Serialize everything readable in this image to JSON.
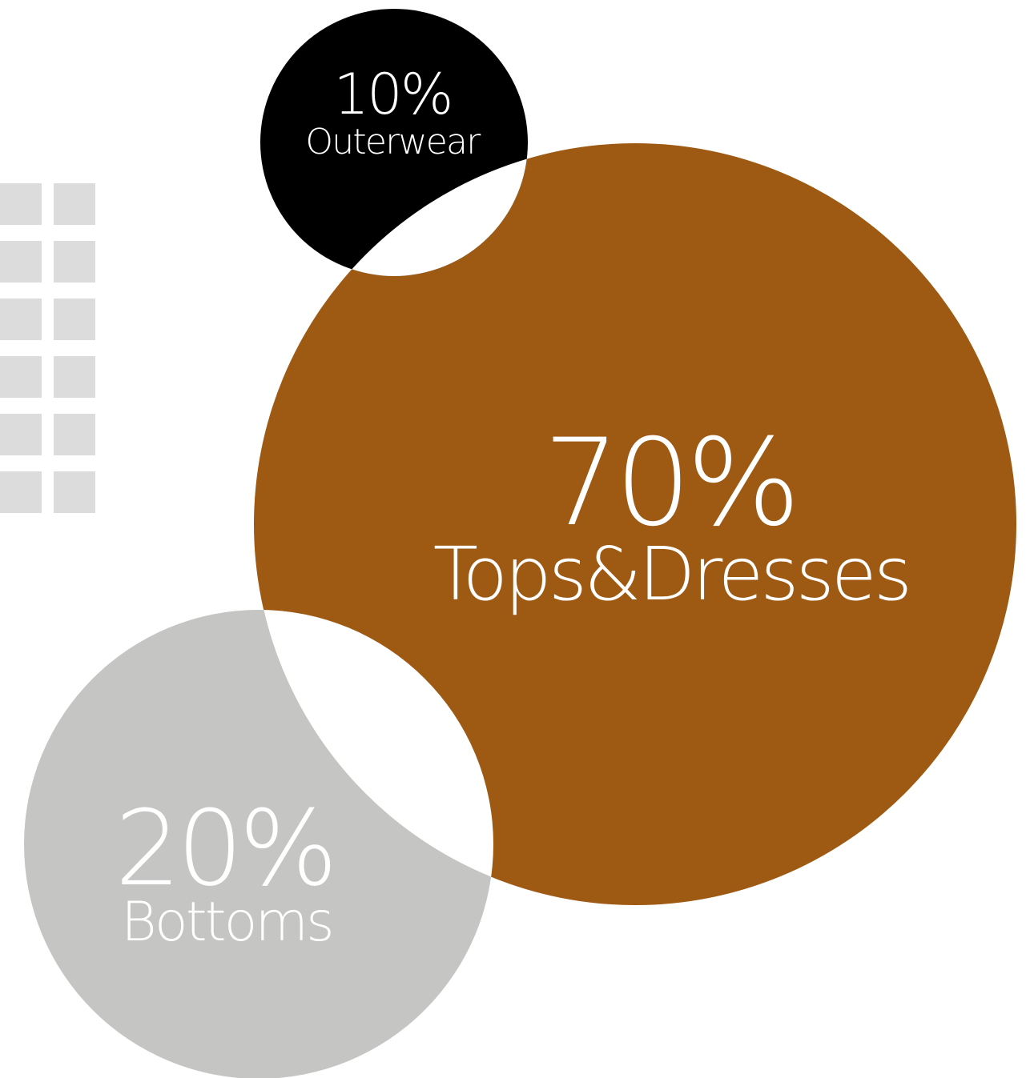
{
  "chart_data": {
    "type": "bubble",
    "title": "",
    "segments": [
      {
        "label": "Tops&Dresses",
        "value": 70,
        "value_label": "70%",
        "color": "#9e5913"
      },
      {
        "label": "Bottoms",
        "value": 20,
        "value_label": "20%",
        "color": "#c5c5c4"
      },
      {
        "label": "Outerwear",
        "value": 10,
        "value_label": "10%",
        "color": "#000000"
      }
    ]
  },
  "decoration": {
    "grid_color": "#dcdcdc",
    "rows": 6,
    "cols": 2
  }
}
